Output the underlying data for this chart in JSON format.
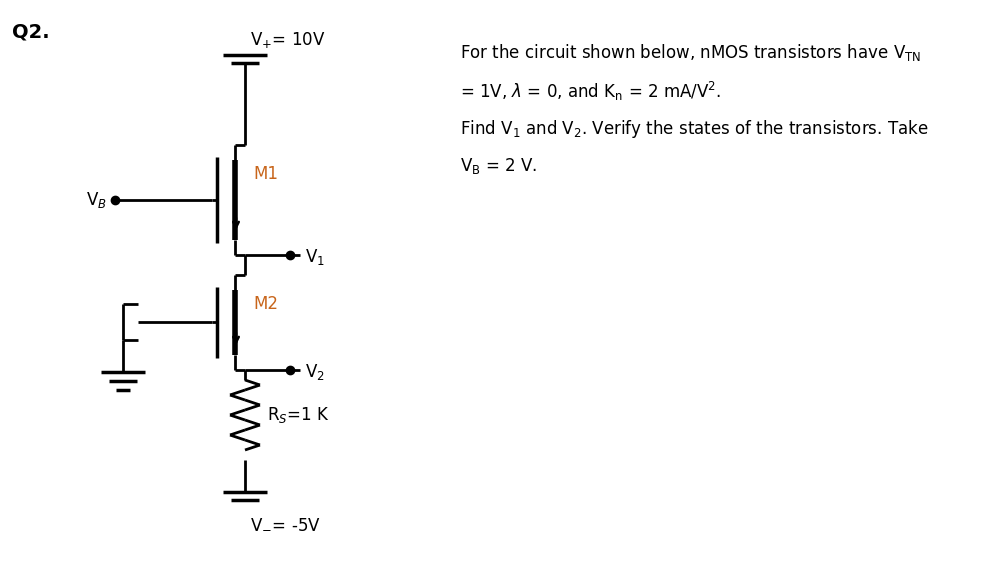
{
  "bg_color": "#ffffff",
  "line_color": "#000000",
  "text_color": "#000000",
  "text_color_orange": "#c8651b",
  "fig_width": 10.03,
  "fig_height": 5.61,
  "vplus_label": "V$_{+}$= 10V",
  "vminus_label": "V$_{-}$= -5V",
  "vb_label": "V$_B$",
  "v1_label": "V$_1$",
  "v2_label": "V$_2$",
  "m1_label": "M1",
  "m2_label": "M2",
  "rs_label": "R$_S$=1 K"
}
